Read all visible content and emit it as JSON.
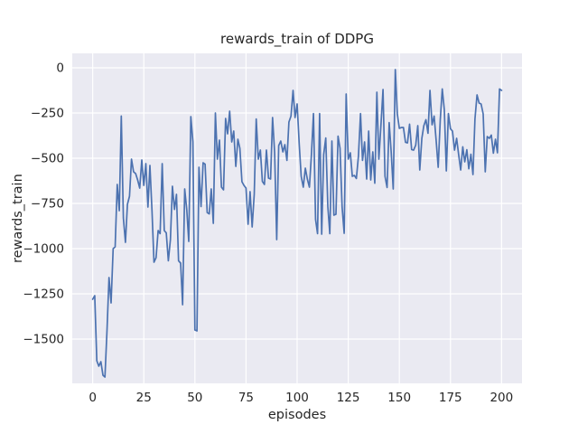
{
  "figure": {
    "background_color": "#ffffff",
    "style": "seaborn-darkgrid"
  },
  "chart_data": {
    "type": "line",
    "title": "rewards_train of DDPG",
    "xlabel": "episodes",
    "ylabel": "rewards_train",
    "grid": true,
    "legend": "none",
    "axes_background_color": "#eaeaf2",
    "grid_color": "#ffffff",
    "line_color": "#4c72b0",
    "text_color": "#262626",
    "xlim": [
      -10,
      210
    ],
    "ylim": [
      -1745,
      80
    ],
    "x_ticks": {
      "values": [
        0,
        25,
        50,
        75,
        100,
        125,
        150,
        175,
        200
      ],
      "labels": [
        "0",
        "25",
        "50",
        "75",
        "100",
        "125",
        "150",
        "175",
        "200"
      ]
    },
    "y_ticks": {
      "values": [
        0,
        -250,
        -500,
        -750,
        -1000,
        -1250,
        -1500
      ],
      "labels": [
        "0",
        "−250",
        "−500",
        "−750",
        "−1000",
        "−1250",
        "−1500"
      ]
    },
    "series": [
      {
        "name": "rewards_train",
        "x_start": 0,
        "x_step": 1,
        "values": [
          -1280,
          -1260,
          -1620,
          -1650,
          -1625,
          -1700,
          -1710,
          -1450,
          -1160,
          -1300,
          -1000,
          -990,
          -645,
          -790,
          -267,
          -830,
          -965,
          -755,
          -710,
          -505,
          -575,
          -585,
          -620,
          -665,
          -510,
          -650,
          -530,
          -770,
          -540,
          -790,
          -1075,
          -1050,
          -900,
          -917,
          -530,
          -900,
          -913,
          -1067,
          -950,
          -655,
          -783,
          -700,
          -1067,
          -1080,
          -1310,
          -670,
          -785,
          -960,
          -270,
          -410,
          -1450,
          -1455,
          -550,
          -767,
          -525,
          -533,
          -800,
          -808,
          -670,
          -860,
          -250,
          -505,
          -400,
          -660,
          -675,
          -280,
          -365,
          -240,
          -410,
          -350,
          -545,
          -395,
          -445,
          -630,
          -650,
          -665,
          -865,
          -685,
          -880,
          -700,
          -283,
          -505,
          -455,
          -628,
          -645,
          -455,
          -610,
          -615,
          -275,
          -470,
          -950,
          -430,
          -405,
          -465,
          -425,
          -512,
          -300,
          -267,
          -125,
          -275,
          -200,
          -420,
          -600,
          -660,
          -555,
          -615,
          -660,
          -483,
          -253,
          -838,
          -917,
          -253,
          -920,
          -480,
          -388,
          -767,
          -917,
          -405,
          -815,
          -810,
          -378,
          -445,
          -770,
          -915,
          -145,
          -505,
          -470,
          -600,
          -595,
          -612,
          -487,
          -253,
          -512,
          -410,
          -615,
          -350,
          -620,
          -465,
          -638,
          -135,
          -505,
          -317,
          -120,
          -600,
          -662,
          -303,
          -462,
          -670,
          -10,
          -253,
          -335,
          -330,
          -330,
          -412,
          -415,
          -312,
          -452,
          -455,
          -428,
          -320,
          -565,
          -390,
          -320,
          -287,
          -362,
          -125,
          -315,
          -267,
          -400,
          -550,
          -287,
          -117,
          -233,
          -570,
          -253,
          -337,
          -350,
          -455,
          -390,
          -478,
          -565,
          -437,
          -520,
          -453,
          -558,
          -478,
          -590,
          -283,
          -150,
          -195,
          -200,
          -255,
          -575,
          -380,
          -390,
          -372,
          -472,
          -395,
          -470,
          -117,
          -125
        ]
      }
    ]
  }
}
